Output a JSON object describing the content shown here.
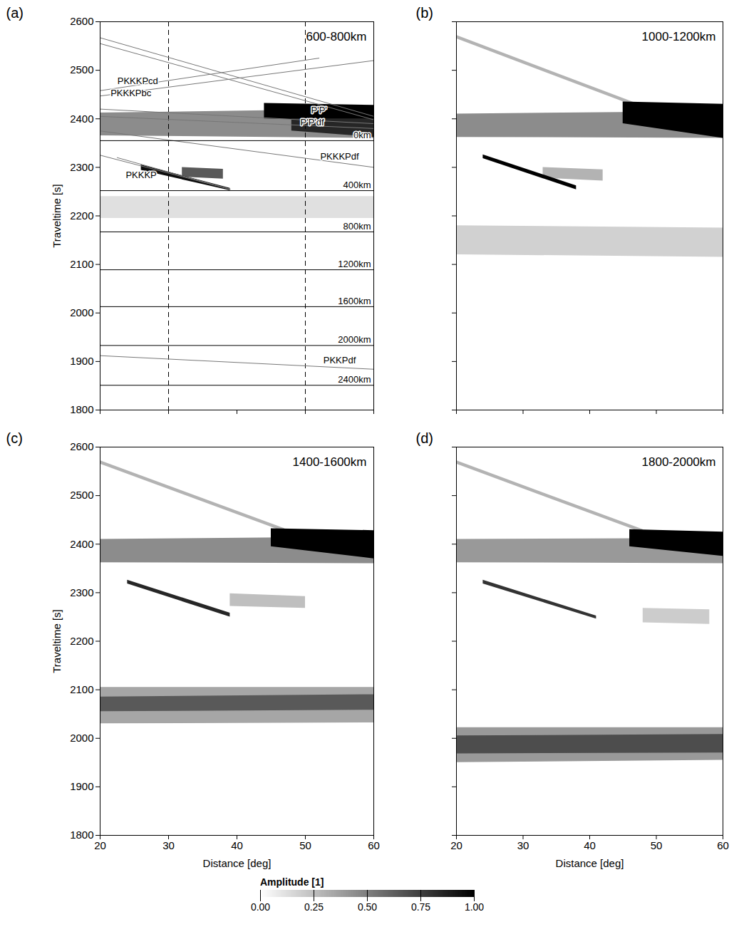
{
  "chart_data": [
    {
      "type": "heatmap",
      "panel": "(a)",
      "title": "600-800km",
      "xlim": [
        20,
        60
      ],
      "xticks": [
        20,
        30,
        40,
        50,
        60
      ],
      "ylim": [
        1800,
        2600
      ],
      "yticks": [
        1800,
        1900,
        2000,
        2100,
        2200,
        2300,
        2400,
        2500,
        2600
      ],
      "tick_labels": "y",
      "y_label": "Traveltime [s]",
      "bands": [
        {
          "x": [
            20,
            60
          ],
          "top": [
            2240,
            2240
          ],
          "bottom": [
            2195,
            2195
          ],
          "amplitude": 0.12
        },
        {
          "x": [
            20,
            60
          ],
          "top": [
            2412,
            2420
          ],
          "bottom": [
            2365,
            2360
          ],
          "amplitude": 0.45
        },
        {
          "x": [
            44,
            60
          ],
          "top": [
            2432,
            2428
          ],
          "bottom": [
            2400,
            2395
          ],
          "amplitude": 1.0
        },
        {
          "x": [
            48,
            60
          ],
          "top": [
            2400,
            2400
          ],
          "bottom": [
            2375,
            2362
          ],
          "amplitude": 0.85
        },
        {
          "x": [
            32,
            38
          ],
          "top": [
            2300,
            2296
          ],
          "bottom": [
            2280,
            2276
          ],
          "amplitude": 0.65
        },
        {
          "x": [
            26,
            39
          ],
          "top": [
            2305,
            2257
          ],
          "bottom": [
            2294,
            2252
          ],
          "amplitude": 0.95
        }
      ],
      "vlines": [
        30,
        50
      ],
      "depth_lines": [
        {
          "label": "0km",
          "t": 2355
        },
        {
          "label": "400km",
          "t": 2252
        },
        {
          "label": "800km",
          "t": 2167
        },
        {
          "label": "1200km",
          "t": 2089
        },
        {
          "label": "1600km",
          "t": 2013
        },
        {
          "label": "2000km",
          "t": 1933
        },
        {
          "label": "2400km",
          "t": 1851
        }
      ],
      "curves": [
        {
          "points": [
            [
              20,
              2567
            ],
            [
              60,
              2405
            ]
          ]
        },
        {
          "points": [
            [
              20,
              2555
            ],
            [
              60,
              2398
            ]
          ]
        },
        {
          "points": [
            [
              20,
              2420
            ],
            [
              60,
              2390
            ]
          ]
        },
        {
          "points": [
            [
              20,
              2405
            ],
            [
              60,
              2380
            ]
          ]
        },
        {
          "points": [
            [
              20,
              2458
            ],
            [
              52,
              2525
            ]
          ]
        },
        {
          "points": [
            [
              20,
              2447
            ],
            [
              60,
              2520
            ]
          ]
        },
        {
          "points": [
            [
              20,
              2375
            ],
            [
              60,
              2300
            ]
          ]
        },
        {
          "points": [
            [
              20,
              2325
            ],
            [
              39,
              2255
            ]
          ]
        },
        {
          "points": [
            [
              22.5,
              2320
            ],
            [
              39,
              2255
            ]
          ]
        },
        {
          "points": [
            [
              20,
              1912
            ],
            [
              60,
              1884
            ]
          ]
        }
      ],
      "curve_labels": [
        {
          "text": "PKKKPcd",
          "x": 25.5,
          "t": 2478
        },
        {
          "text": "PKKKPbc",
          "x": 24.5,
          "t": 2453
        },
        {
          "text": "P'P'",
          "x": 52,
          "t": 2418
        },
        {
          "text": "P'P'df",
          "x": 51,
          "t": 2392
        },
        {
          "text": "PKKKPdf",
          "x": 55,
          "t": 2322
        },
        {
          "text": "PKKKP",
          "x": 26,
          "t": 2284
        },
        {
          "text": "PKKPdf",
          "x": 55,
          "t": 1903
        }
      ]
    },
    {
      "type": "heatmap",
      "panel": "(b)",
      "title": "1000-1200km",
      "xlim": [
        20,
        60
      ],
      "xticks": [
        20,
        30,
        40,
        50,
        60
      ],
      "ylim": [
        1800,
        2600
      ],
      "yticks": [
        1800,
        1900,
        2000,
        2100,
        2200,
        2300,
        2400,
        2500,
        2600
      ],
      "tick_labels": false,
      "bands": [
        {
          "x": [
            20,
            47
          ],
          "top": [
            2572,
            2432
          ],
          "bottom": [
            2565,
            2425
          ],
          "amplitude": 0.3
        },
        {
          "x": [
            20,
            60
          ],
          "top": [
            2180,
            2175
          ],
          "bottom": [
            2120,
            2115
          ],
          "amplitude": 0.18
        },
        {
          "x": [
            20,
            60
          ],
          "top": [
            2410,
            2415
          ],
          "bottom": [
            2362,
            2360
          ],
          "amplitude": 0.45
        },
        {
          "x": [
            45,
            60
          ],
          "top": [
            2435,
            2430
          ],
          "bottom": [
            2390,
            2360
          ],
          "amplitude": 1.0
        },
        {
          "x": [
            33,
            42
          ],
          "top": [
            2300,
            2295
          ],
          "bottom": [
            2278,
            2272
          ],
          "amplitude": 0.3
        },
        {
          "x": [
            24,
            38
          ],
          "top": [
            2326,
            2262
          ],
          "bottom": [
            2318,
            2254
          ],
          "amplitude": 1.0
        }
      ]
    },
    {
      "type": "heatmap",
      "panel": "(c)",
      "title": "1400-1600km",
      "xlim": [
        20,
        60
      ],
      "xticks": [
        20,
        30,
        40,
        50,
        60
      ],
      "ylim": [
        1800,
        2600
      ],
      "yticks": [
        1800,
        1900,
        2000,
        2100,
        2200,
        2300,
        2400,
        2500,
        2600
      ],
      "tick_labels": true,
      "x_label": "Distance [deg]",
      "y_label": "Traveltime [s]",
      "bands": [
        {
          "x": [
            20,
            47
          ],
          "top": [
            2572,
            2432
          ],
          "bottom": [
            2565,
            2425
          ],
          "amplitude": 0.3
        },
        {
          "x": [
            20,
            60
          ],
          "top": [
            2105,
            2105
          ],
          "bottom": [
            2030,
            2032
          ],
          "amplitude": 0.35
        },
        {
          "x": [
            20,
            60
          ],
          "top": [
            2085,
            2090
          ],
          "bottom": [
            2055,
            2058
          ],
          "amplitude": 0.65
        },
        {
          "x": [
            20,
            60
          ],
          "top": [
            2410,
            2415
          ],
          "bottom": [
            2362,
            2360
          ],
          "amplitude": 0.45
        },
        {
          "x": [
            45,
            60
          ],
          "top": [
            2432,
            2428
          ],
          "bottom": [
            2395,
            2370
          ],
          "amplitude": 1.0
        },
        {
          "x": [
            39,
            50
          ],
          "top": [
            2298,
            2292
          ],
          "bottom": [
            2272,
            2268
          ],
          "amplitude": 0.25
        },
        {
          "x": [
            24,
            39
          ],
          "top": [
            2326,
            2258
          ],
          "bottom": [
            2318,
            2250
          ],
          "amplitude": 0.85
        }
      ]
    },
    {
      "type": "heatmap",
      "panel": "(d)",
      "title": "1800-2000km",
      "xlim": [
        20,
        60
      ],
      "xticks": [
        20,
        30,
        40,
        50,
        60
      ],
      "ylim": [
        1800,
        2600
      ],
      "yticks": [
        1800,
        1900,
        2000,
        2100,
        2200,
        2300,
        2400,
        2500,
        2600
      ],
      "tick_labels": "x",
      "x_label": "Distance [deg]",
      "bands": [
        {
          "x": [
            20,
            48
          ],
          "top": [
            2572,
            2430
          ],
          "bottom": [
            2565,
            2423
          ],
          "amplitude": 0.3
        },
        {
          "x": [
            20,
            60
          ],
          "top": [
            2022,
            2022
          ],
          "bottom": [
            1950,
            1955
          ],
          "amplitude": 0.4
        },
        {
          "x": [
            20,
            60
          ],
          "top": [
            2005,
            2008
          ],
          "bottom": [
            1968,
            1970
          ],
          "amplitude": 0.7
        },
        {
          "x": [
            20,
            60
          ],
          "top": [
            2410,
            2412
          ],
          "bottom": [
            2362,
            2360
          ],
          "amplitude": 0.4
        },
        {
          "x": [
            46,
            60
          ],
          "top": [
            2430,
            2425
          ],
          "bottom": [
            2395,
            2375
          ],
          "amplitude": 1.0
        },
        {
          "x": [
            48,
            58
          ],
          "top": [
            2268,
            2265
          ],
          "bottom": [
            2238,
            2235
          ],
          "amplitude": 0.2
        },
        {
          "x": [
            24,
            41
          ],
          "top": [
            2326,
            2252
          ],
          "bottom": [
            2318,
            2246
          ],
          "amplitude": 0.8
        }
      ]
    }
  ],
  "colorbar": {
    "label": "Amplitude [1]",
    "range": [
      0,
      1
    ],
    "ticks": [
      {
        "value": 0,
        "label": "0.00"
      },
      {
        "value": 0.25,
        "label": "0.25"
      },
      {
        "value": 0.5,
        "label": "0.50"
      },
      {
        "value": 0.75,
        "label": "0.75"
      },
      {
        "value": 1,
        "label": "1.00"
      }
    ]
  }
}
